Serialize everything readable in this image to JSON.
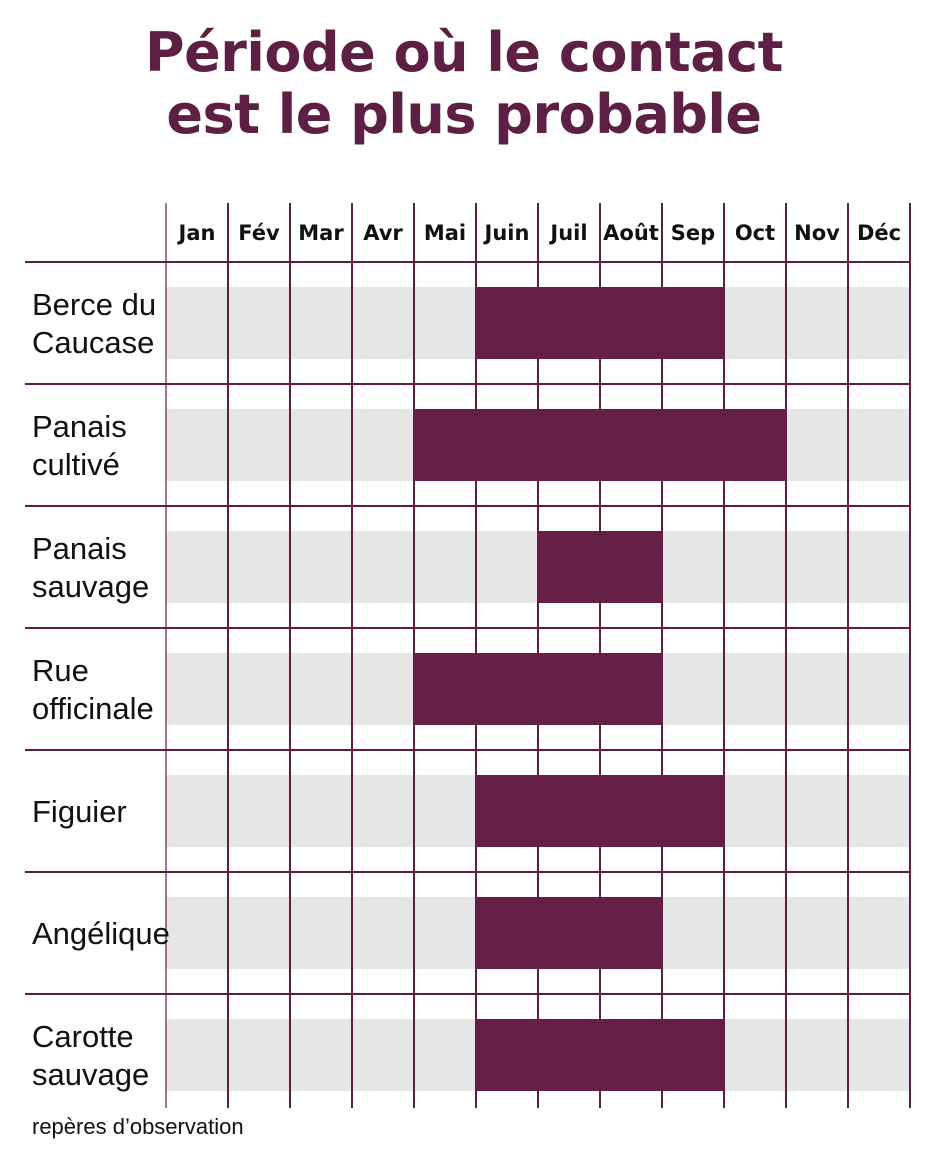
{
  "title": {
    "line1": "Période où le contact",
    "line2": "est le plus probable"
  },
  "footnote": "repères d’observation",
  "colors": {
    "title": "#5e1f45",
    "bar": "#651f47",
    "row_band": "#e6e6e6",
    "grid": "#5e1f45"
  },
  "chart_data": {
    "type": "bar",
    "orientation": "horizontal-gantt",
    "months": [
      "Jan",
      "Fév",
      "Mar",
      "Avr",
      "Mai",
      "Juin",
      "Juil",
      "Août",
      "Sep",
      "Oct",
      "Nov",
      "Déc"
    ],
    "rows": [
      {
        "label_lines": [
          "Berce du",
          "Caucase"
        ],
        "start": "Juin",
        "end": "Sep"
      },
      {
        "label_lines": [
          "Panais",
          "cultivé"
        ],
        "start": "Mai",
        "end": "Oct"
      },
      {
        "label_lines": [
          "Panais",
          "sauvage"
        ],
        "start": "Juil",
        "end": "Août"
      },
      {
        "label_lines": [
          "Rue",
          "officinale"
        ],
        "start": "Mai",
        "end": "Août"
      },
      {
        "label_lines": [
          "Figuier"
        ],
        "start": "Juin",
        "end": "Sep"
      },
      {
        "label_lines": [
          "Angélique"
        ],
        "start": "Juin",
        "end": "Août"
      },
      {
        "label_lines": [
          "Carotte",
          "sauvage"
        ],
        "start": "Juin",
        "end": "Sep"
      }
    ]
  }
}
